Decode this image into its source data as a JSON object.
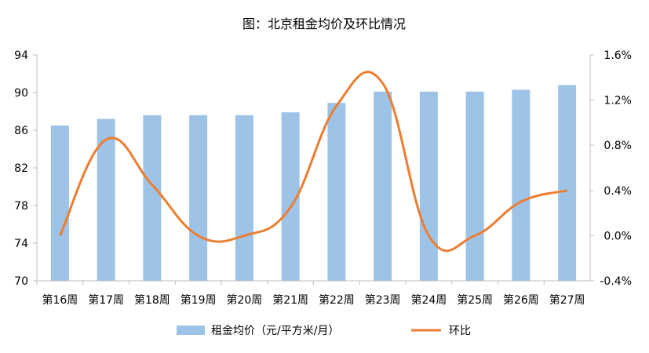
{
  "chart_data": {
    "type": "bar",
    "title": "图：北京租金均价及环比情况",
    "categories": [
      "第16周",
      "第17周",
      "第18周",
      "第19周",
      "第20周",
      "第21周",
      "第22周",
      "第23周",
      "第24周",
      "第25周",
      "第26周",
      "第27周"
    ],
    "series": [
      {
        "name": "租金均价（元/平方米/月）",
        "type": "bar",
        "axis": "left",
        "color": "#9dc3e6",
        "values": [
          86.5,
          87.2,
          87.6,
          87.6,
          87.6,
          87.9,
          88.9,
          90.1,
          90.1,
          90.1,
          90.3,
          90.8
        ]
      },
      {
        "name": "环比",
        "type": "line",
        "axis": "right",
        "color": "#ed7d31",
        "values": [
          0.0,
          0.85,
          0.45,
          0.0,
          0.0,
          0.25,
          1.15,
          1.35,
          0.0,
          0.0,
          0.3,
          0.4
        ]
      }
    ],
    "y_left": {
      "min": 70,
      "max": 94,
      "ticks": [
        "70",
        "74",
        "78",
        "82",
        "86",
        "90",
        "94"
      ]
    },
    "y_right": {
      "min": -0.4,
      "max": 1.6,
      "ticks": [
        "-0.4%",
        "0.0%",
        "0.4%",
        "0.8%",
        "1.2%",
        "1.6%"
      ]
    },
    "grid": false,
    "legend_position": "bottom"
  }
}
